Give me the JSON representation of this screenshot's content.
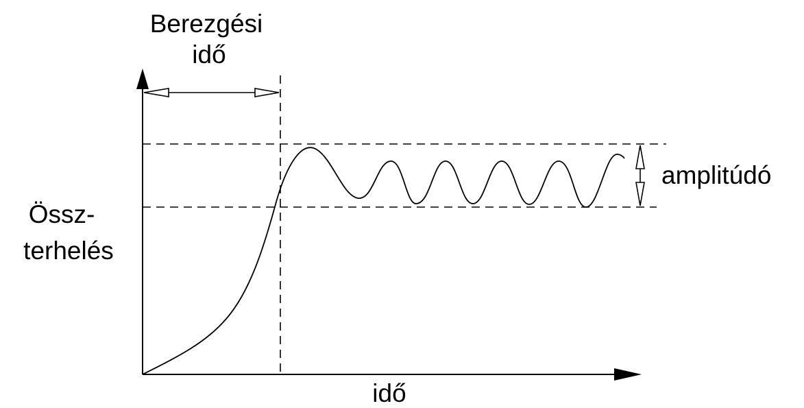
{
  "labels": {
    "settling_time": [
      "Berezgési",
      "idő"
    ],
    "amplitude": "amplitúdó",
    "y_axis": [
      "Össz-",
      "terhelés"
    ],
    "x_axis": "idő"
  },
  "colors": {
    "stroke": "#000000",
    "background": "#ffffff"
  }
}
